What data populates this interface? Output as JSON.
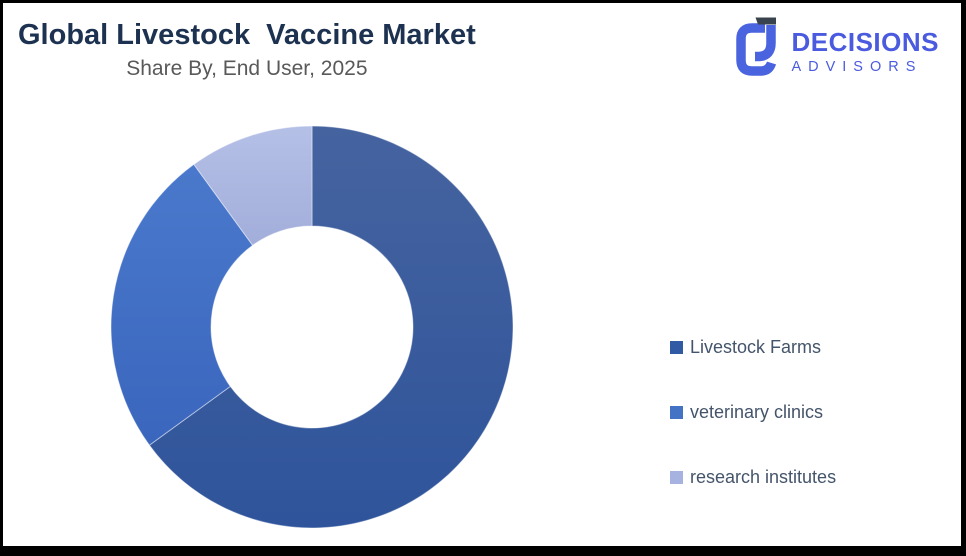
{
  "page": {
    "background_color": "#ffffff",
    "frame_color": "#000000"
  },
  "header": {
    "title": "Global Livestock  Vaccine Market",
    "subtitle": "Share By, End User, 2025",
    "title_color": "#1C3250",
    "subtitle_color": "#595959"
  },
  "logo": {
    "name": "DECISIONS",
    "tagline": "ADVISORS",
    "brand_color": "#4A5BDF",
    "icon_dark_color": "#39434D"
  },
  "chart_data": {
    "type": "pie",
    "variant": "donut",
    "hole_ratio": 0.5,
    "start_angle_deg": 0,
    "direction": "clockwise",
    "title": "Global Livestock  Vaccine Market",
    "subtitle": "Share By, End User, 2025",
    "legend_position": "right",
    "unit": "percent_share",
    "categories": [
      "Livestock Farms",
      "veterinary clinics",
      "research institutes"
    ],
    "values": [
      65,
      25,
      10
    ],
    "slices": [
      {
        "label": "Livestock Farms",
        "value": 65,
        "color_top": "#45639F",
        "color_bottom": "#2F549B",
        "legend_color": "#305AA3"
      },
      {
        "label": "veterinary clinics",
        "value": 25,
        "color_top": "#4A79CC",
        "color_bottom": "#3A66BD",
        "legend_color": "#4472C4"
      },
      {
        "label": "research institutes",
        "value": 10,
        "color_top": "#B5C0E7",
        "color_bottom": "#A2AEDA",
        "legend_color": "#A6B2DF"
      }
    ]
  }
}
